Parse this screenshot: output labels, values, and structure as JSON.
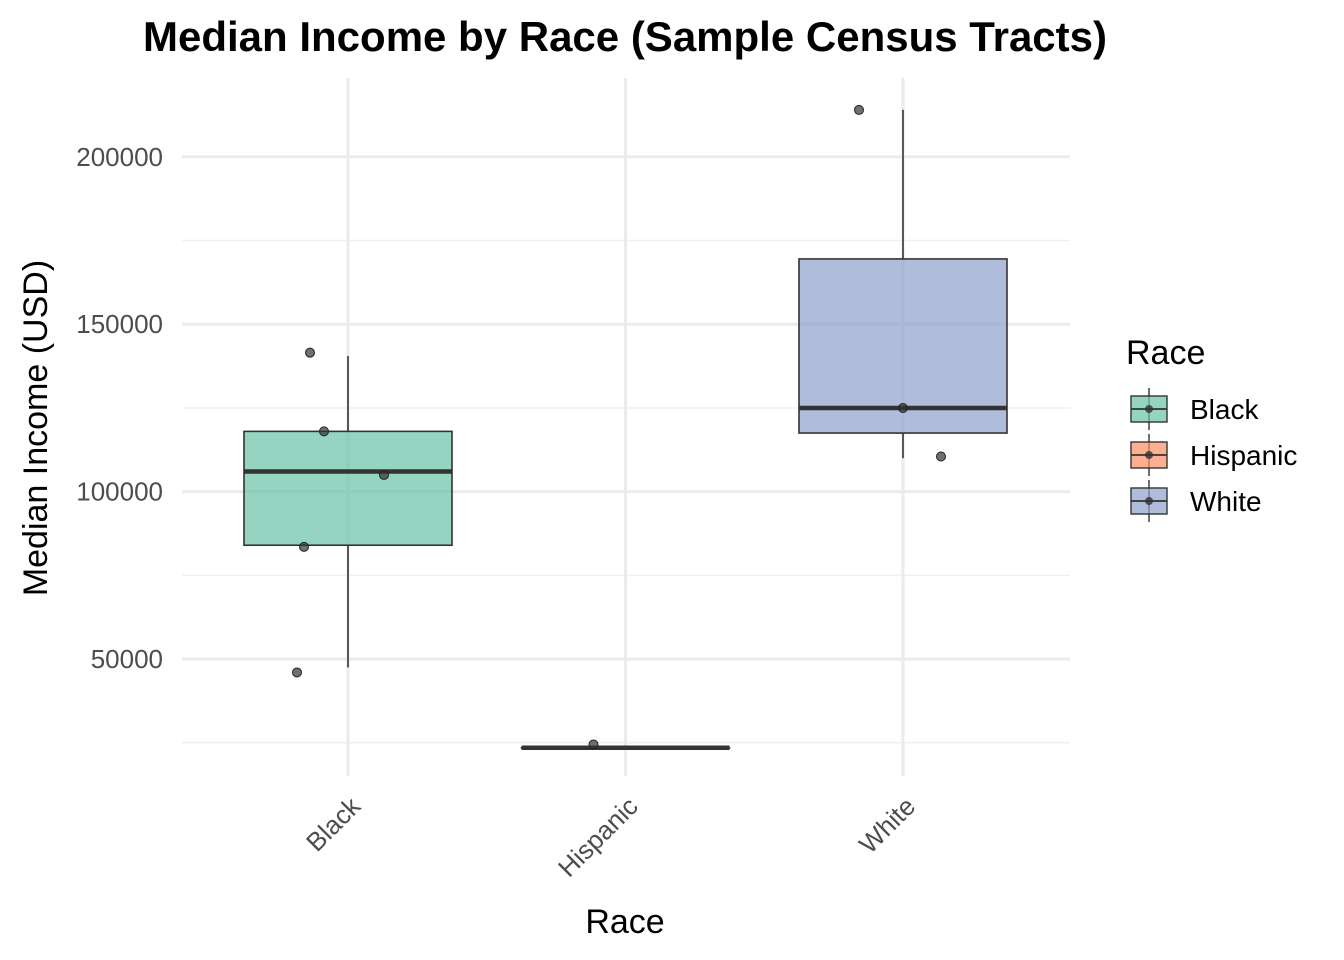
{
  "chart_data": {
    "type": "box",
    "title": "Median Income by Race (Sample Census Tracts)",
    "xlabel": "Race",
    "ylabel": "Median Income (USD)",
    "categories": [
      "Black",
      "Hispanic",
      "White"
    ],
    "ylim": [
      12000,
      228000
    ],
    "y_ticks": [
      50000,
      100000,
      150000,
      200000
    ],
    "y_tick_labels": [
      "50000",
      "100000",
      "150000",
      "200000"
    ],
    "y_minor_ticks": [
      25000,
      75000,
      125000,
      175000
    ],
    "grid": true,
    "series": [
      {
        "name": "Black",
        "color": "#66c2a5",
        "box": {
          "lower_whisker": 47500,
          "q1": 84000,
          "median": 106000,
          "q3": 118000,
          "upper_whisker": 140500
        },
        "points": [
          141500,
          118000,
          105000,
          83500,
          46000
        ]
      },
      {
        "name": "Hispanic",
        "color": "#fc8d62",
        "box": {
          "lower_whisker": 23500,
          "q1": 23500,
          "median": 23500,
          "q3": 23500,
          "upper_whisker": 23500
        },
        "points": [
          24500
        ]
      },
      {
        "name": "White",
        "color": "#8da0cb",
        "box": {
          "lower_whisker": 110000,
          "q1": 117500,
          "median": 125000,
          "q3": 169500,
          "upper_whisker": 214000
        },
        "points": [
          214000,
          125000,
          110500
        ]
      }
    ],
    "legend": {
      "title": "Race",
      "position": "right",
      "items": [
        "Black",
        "Hispanic",
        "White"
      ]
    }
  }
}
